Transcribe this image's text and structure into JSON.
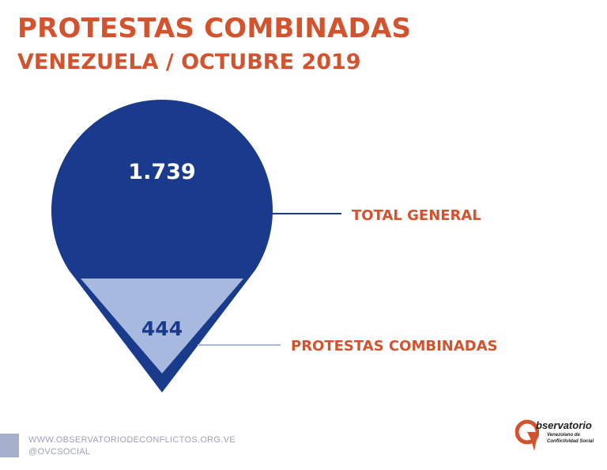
{
  "header": {
    "title": "PROTESTAS COMBINADAS",
    "subtitle": "VENEZUELA / OCTUBRE 2019"
  },
  "chart_data": {
    "type": "other",
    "title": "PROTESTAS COMBINADAS",
    "subtitle": "VENEZUELA / OCTUBRE 2019",
    "series": [
      {
        "name": "TOTAL GENERAL",
        "value": 1739,
        "value_label": "1.739"
      },
      {
        "name": "PROTESTAS COMBINADAS",
        "value": 444,
        "value_label": "444"
      }
    ]
  },
  "colors": {
    "accent": "#d2532e",
    "total": "#1a3a8c",
    "part": "#a7b9de",
    "leader_total": "#1a3a8c",
    "leader_part": "#a7b9de"
  },
  "footer": {
    "website": "WWW.OBSERVATORIODECONFLICTOS.ORG.VE",
    "social": "@OVCSOCIAL"
  },
  "logo": {
    "word": "bservatorio",
    "line1": "Venezolano de",
    "line2": "Conflictividad Social",
    "icon": "o-arrow-logo-icon"
  }
}
